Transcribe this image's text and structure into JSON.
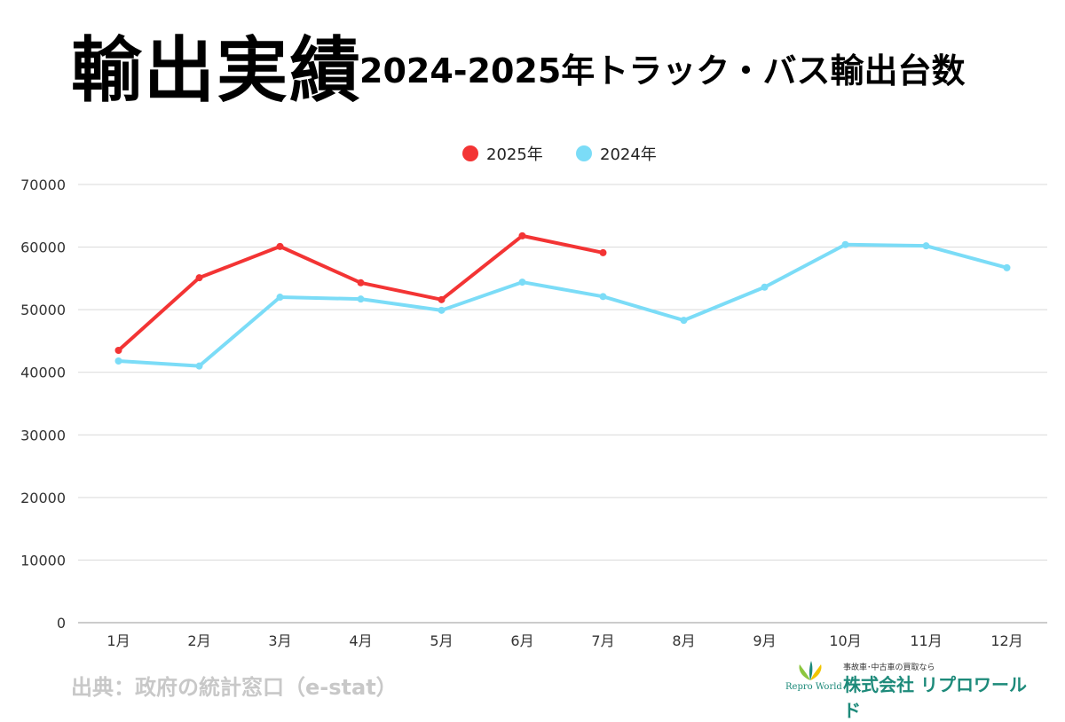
{
  "header": {
    "title": "輸出実績",
    "subtitle": "2024-2025年トラック・バス輸出台数"
  },
  "footer": {
    "source": "出典：政府の統計窓口（e-stat）"
  },
  "logo": {
    "tagline": "事故車･中古車の買取なら",
    "name": "株式会社 リプロワールド",
    "english": "Repro World"
  },
  "chart_data": {
    "type": "line",
    "title": "",
    "xlabel": "",
    "ylabel": "",
    "categories": [
      "1月",
      "2月",
      "3月",
      "4月",
      "5月",
      "6月",
      "7月",
      "8月",
      "9月",
      "10月",
      "11月",
      "12月"
    ],
    "ylim": [
      0,
      70000
    ],
    "yticks": [
      0,
      10000,
      20000,
      30000,
      40000,
      50000,
      60000,
      70000
    ],
    "grid": true,
    "legend_position": "top-center",
    "series": [
      {
        "name": "2025年",
        "color": "#f33434",
        "values": [
          43500,
          55100,
          60100,
          54300,
          51600,
          61800,
          59100,
          null,
          null,
          null,
          null,
          null
        ]
      },
      {
        "name": "2024年",
        "color": "#7bdcf7",
        "values": [
          41800,
          41000,
          52000,
          51700,
          49900,
          54400,
          52100,
          48300,
          53600,
          60400,
          60200,
          56700
        ]
      }
    ]
  }
}
